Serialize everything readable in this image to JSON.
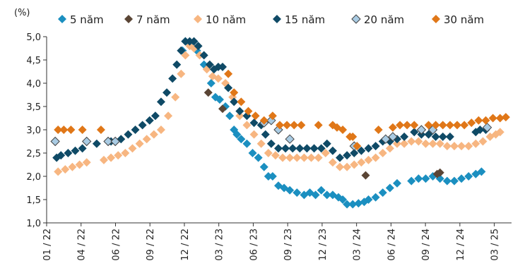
{
  "chart_data": {
    "type": "scatter",
    "ylabel": "(%)",
    "ylim": [
      1.0,
      5.0
    ],
    "yticks": [
      "1,0",
      "1,5",
      "2,0",
      "2,5",
      "3,0",
      "3,5",
      "4,0",
      "4,5",
      "5,0"
    ],
    "ytick_values": [
      1.0,
      1.5,
      2.0,
      2.5,
      3.0,
      3.5,
      4.0,
      4.5,
      5.0
    ],
    "xlim": [
      2022.0,
      2025.25
    ],
    "xticks": [
      "01 / 22",
      "04 / 22",
      "06 / 22",
      "09 / 22",
      "12 / 22",
      "03 / 23",
      "06 / 23",
      "09 / 23",
      "12 / 23",
      "03 / 24",
      "06 / 24",
      "09 / 24",
      "12 / 24",
      "03 / 25"
    ],
    "grid": false,
    "legend": "top",
    "series": [
      {
        "name": "5 năm",
        "color": "#1b8fc0",
        "marker": "diamond",
        "points": [
          [
            2022.95,
            4.7
          ],
          [
            2022.97,
            4.9
          ],
          [
            2023.0,
            4.85
          ],
          [
            2023.05,
            4.7
          ],
          [
            2023.1,
            4.4
          ],
          [
            2023.15,
            4.0
          ],
          [
            2023.18,
            3.7
          ],
          [
            2023.21,
            3.65
          ],
          [
            2023.25,
            3.5
          ],
          [
            2023.28,
            3.3
          ],
          [
            2023.31,
            3.0
          ],
          [
            2023.33,
            2.9
          ],
          [
            2023.36,
            2.8
          ],
          [
            2023.4,
            2.7
          ],
          [
            2023.44,
            2.5
          ],
          [
            2023.48,
            2.4
          ],
          [
            2023.52,
            2.2
          ],
          [
            2023.55,
            2.0
          ],
          [
            2023.58,
            2.0
          ],
          [
            2023.62,
            1.8
          ],
          [
            2023.66,
            1.75
          ],
          [
            2023.7,
            1.7
          ],
          [
            2023.75,
            1.65
          ],
          [
            2023.8,
            1.6
          ],
          [
            2023.84,
            1.65
          ],
          [
            2023.88,
            1.6
          ],
          [
            2023.92,
            1.7
          ],
          [
            2023.96,
            1.6
          ],
          [
            2024.0,
            1.6
          ],
          [
            2024.04,
            1.55
          ],
          [
            2024.07,
            1.5
          ],
          [
            2024.1,
            1.4
          ],
          [
            2024.14,
            1.4
          ],
          [
            2024.18,
            1.42
          ],
          [
            2024.22,
            1.45
          ],
          [
            2024.25,
            1.5
          ],
          [
            2024.3,
            1.55
          ],
          [
            2024.35,
            1.65
          ],
          [
            2024.4,
            1.75
          ],
          [
            2024.45,
            1.85
          ],
          [
            2024.55,
            1.9
          ],
          [
            2024.6,
            1.95
          ],
          [
            2024.65,
            1.95
          ],
          [
            2024.7,
            2.0
          ],
          [
            2024.75,
            1.95
          ],
          [
            2024.8,
            1.9
          ],
          [
            2024.85,
            1.9
          ],
          [
            2024.9,
            1.95
          ],
          [
            2024.95,
            2.0
          ],
          [
            2025.0,
            2.05
          ],
          [
            2025.04,
            2.1
          ]
        ]
      },
      {
        "name": "7 năm",
        "color": "#5a4535",
        "marker": "diamond",
        "points": [
          [
            2023.13,
            3.8
          ],
          [
            2023.23,
            3.45
          ],
          [
            2024.23,
            2.02
          ],
          [
            2024.73,
            2.05
          ],
          [
            2024.75,
            2.08
          ]
        ]
      },
      {
        "name": "10 năm",
        "color": "#f7b681",
        "marker": "diamond",
        "points": [
          [
            2022.08,
            2.1
          ],
          [
            2022.13,
            2.15
          ],
          [
            2022.18,
            2.2
          ],
          [
            2022.23,
            2.25
          ],
          [
            2022.28,
            2.3
          ],
          [
            2022.4,
            2.35
          ],
          [
            2022.45,
            2.4
          ],
          [
            2022.5,
            2.45
          ],
          [
            2022.55,
            2.5
          ],
          [
            2022.6,
            2.6
          ],
          [
            2022.65,
            2.7
          ],
          [
            2022.7,
            2.8
          ],
          [
            2022.75,
            2.9
          ],
          [
            2022.8,
            3.0
          ],
          [
            2022.85,
            3.3
          ],
          [
            2022.9,
            3.7
          ],
          [
            2022.94,
            4.2
          ],
          [
            2022.97,
            4.6
          ],
          [
            2023.0,
            4.8
          ],
          [
            2023.03,
            4.75
          ],
          [
            2023.07,
            4.6
          ],
          [
            2023.12,
            4.3
          ],
          [
            2023.16,
            4.15
          ],
          [
            2023.2,
            4.1
          ],
          [
            2023.25,
            4.0
          ],
          [
            2023.3,
            3.7
          ],
          [
            2023.35,
            3.3
          ],
          [
            2023.4,
            3.1
          ],
          [
            2023.45,
            2.9
          ],
          [
            2023.5,
            2.7
          ],
          [
            2023.55,
            2.5
          ],
          [
            2023.6,
            2.45
          ],
          [
            2023.65,
            2.4
          ],
          [
            2023.7,
            2.4
          ],
          [
            2023.75,
            2.4
          ],
          [
            2023.8,
            2.4
          ],
          [
            2023.85,
            2.4
          ],
          [
            2023.9,
            2.4
          ],
          [
            2023.95,
            2.5
          ],
          [
            2024.0,
            2.3
          ],
          [
            2024.05,
            2.2
          ],
          [
            2024.1,
            2.2
          ],
          [
            2024.15,
            2.25
          ],
          [
            2024.2,
            2.3
          ],
          [
            2024.25,
            2.35
          ],
          [
            2024.3,
            2.4
          ],
          [
            2024.35,
            2.5
          ],
          [
            2024.4,
            2.6
          ],
          [
            2024.45,
            2.7
          ],
          [
            2024.5,
            2.7
          ],
          [
            2024.55,
            2.75
          ],
          [
            2024.6,
            2.75
          ],
          [
            2024.65,
            2.7
          ],
          [
            2024.7,
            2.7
          ],
          [
            2024.75,
            2.7
          ],
          [
            2024.8,
            2.65
          ],
          [
            2024.85,
            2.65
          ],
          [
            2024.9,
            2.65
          ],
          [
            2024.95,
            2.65
          ],
          [
            2025.0,
            2.7
          ],
          [
            2025.05,
            2.75
          ],
          [
            2025.1,
            2.85
          ],
          [
            2025.14,
            2.9
          ],
          [
            2025.17,
            2.95
          ]
        ]
      },
      {
        "name": "15 năm",
        "color": "#0f4a66",
        "marker": "diamond",
        "points": [
          [
            2022.07,
            2.4
          ],
          [
            2022.1,
            2.45
          ],
          [
            2022.15,
            2.5
          ],
          [
            2022.2,
            2.55
          ],
          [
            2022.25,
            2.6
          ],
          [
            2022.35,
            2.7
          ],
          [
            2022.45,
            2.75
          ],
          [
            2022.52,
            2.8
          ],
          [
            2022.57,
            2.9
          ],
          [
            2022.62,
            3.0
          ],
          [
            2022.67,
            3.1
          ],
          [
            2022.72,
            3.2
          ],
          [
            2022.76,
            3.3
          ],
          [
            2022.8,
            3.6
          ],
          [
            2022.84,
            3.8
          ],
          [
            2022.88,
            4.1
          ],
          [
            2022.91,
            4.4
          ],
          [
            2022.94,
            4.7
          ],
          [
            2022.97,
            4.9
          ],
          [
            2023.0,
            4.9
          ],
          [
            2023.03,
            4.9
          ],
          [
            2023.06,
            4.8
          ],
          [
            2023.1,
            4.6
          ],
          [
            2023.14,
            4.4
          ],
          [
            2023.17,
            4.3
          ],
          [
            2023.2,
            4.35
          ],
          [
            2023.23,
            4.35
          ],
          [
            2023.27,
            3.9
          ],
          [
            2023.31,
            3.6
          ],
          [
            2023.35,
            3.4
          ],
          [
            2023.4,
            3.3
          ],
          [
            2023.45,
            3.15
          ],
          [
            2023.5,
            3.1
          ],
          [
            2023.53,
            2.9
          ],
          [
            2023.57,
            2.7
          ],
          [
            2023.62,
            2.6
          ],
          [
            2023.67,
            2.6
          ],
          [
            2023.72,
            2.6
          ],
          [
            2023.77,
            2.6
          ],
          [
            2023.82,
            2.6
          ],
          [
            2023.87,
            2.6
          ],
          [
            2023.92,
            2.6
          ],
          [
            2023.96,
            2.7
          ],
          [
            2024.0,
            2.55
          ],
          [
            2024.05,
            2.4
          ],
          [
            2024.1,
            2.45
          ],
          [
            2024.15,
            2.5
          ],
          [
            2024.2,
            2.55
          ],
          [
            2024.25,
            2.6
          ],
          [
            2024.3,
            2.65
          ],
          [
            2024.35,
            2.75
          ],
          [
            2024.4,
            2.75
          ],
          [
            2024.45,
            2.8
          ],
          [
            2024.5,
            2.85
          ],
          [
            2024.57,
            2.95
          ],
          [
            2024.62,
            2.9
          ],
          [
            2024.67,
            2.9
          ],
          [
            2024.72,
            2.85
          ],
          [
            2024.77,
            2.85
          ],
          [
            2024.82,
            2.85
          ],
          [
            2025.0,
            2.95
          ],
          [
            2025.03,
            3.0
          ],
          [
            2025.07,
            3.0
          ]
        ]
      },
      {
        "name": "20 năm",
        "color": "#a9cbe3",
        "marker": "diamond",
        "points": [
          [
            2022.06,
            2.75
          ],
          [
            2022.28,
            2.75
          ],
          [
            2022.43,
            2.75
          ],
          [
            2022.48,
            2.75
          ],
          [
            2023.52,
            3.15
          ],
          [
            2023.57,
            3.2
          ],
          [
            2023.62,
            3.0
          ],
          [
            2023.7,
            2.8
          ],
          [
            2024.15,
            2.65
          ],
          [
            2024.37,
            2.8
          ],
          [
            2024.42,
            2.85
          ],
          [
            2024.62,
            3.0
          ],
          [
            2024.7,
            3.0
          ],
          [
            2025.08,
            3.05
          ]
        ]
      },
      {
        "name": "30 năm",
        "color": "#e07718",
        "marker": "diamond",
        "points": [
          [
            2022.08,
            3.0
          ],
          [
            2022.12,
            3.0
          ],
          [
            2022.17,
            3.0
          ],
          [
            2022.25,
            3.0
          ],
          [
            2022.38,
            3.0
          ],
          [
            2023.27,
            4.2
          ],
          [
            2023.31,
            3.8
          ],
          [
            2023.36,
            3.6
          ],
          [
            2023.41,
            3.4
          ],
          [
            2023.46,
            3.3
          ],
          [
            2023.52,
            3.2
          ],
          [
            2023.58,
            3.3
          ],
          [
            2023.63,
            3.1
          ],
          [
            2023.68,
            3.1
          ],
          [
            2023.73,
            3.1
          ],
          [
            2023.78,
            3.1
          ],
          [
            2023.9,
            3.1
          ],
          [
            2024.0,
            3.1
          ],
          [
            2024.03,
            3.05
          ],
          [
            2024.07,
            3.0
          ],
          [
            2024.12,
            2.85
          ],
          [
            2024.14,
            2.85
          ],
          [
            2024.17,
            2.65
          ],
          [
            2024.32,
            3.0
          ],
          [
            2024.42,
            3.05
          ],
          [
            2024.47,
            3.1
          ],
          [
            2024.52,
            3.1
          ],
          [
            2024.57,
            3.1
          ],
          [
            2024.67,
            3.1
          ],
          [
            2024.72,
            3.1
          ],
          [
            2024.77,
            3.1
          ],
          [
            2024.82,
            3.1
          ],
          [
            2024.87,
            3.1
          ],
          [
            2024.92,
            3.1
          ],
          [
            2024.97,
            3.15
          ],
          [
            2025.02,
            3.2
          ],
          [
            2025.07,
            3.2
          ],
          [
            2025.12,
            3.25
          ],
          [
            2025.17,
            3.25
          ],
          [
            2025.21,
            3.27
          ]
        ]
      }
    ]
  }
}
